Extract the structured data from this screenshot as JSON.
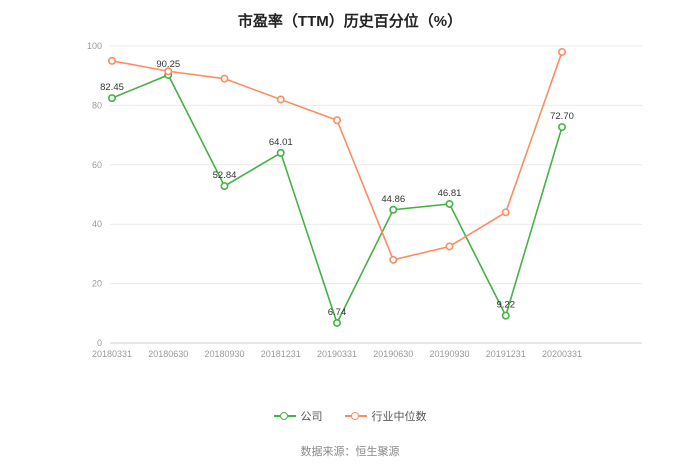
{
  "footer": {
    "source_text": "数据来源：恒生聚源"
  },
  "chart_data": {
    "type": "line",
    "title": "市盈率（TTM）历史百分位（%）",
    "categories": [
      "20180331",
      "20180630",
      "20180930",
      "20181231",
      "20190331",
      "20190630",
      "20190930",
      "20191231",
      "20200331"
    ],
    "series": [
      {
        "id": "company",
        "name": "公司",
        "color": "#44b244",
        "show_labels": true,
        "values": [
          82.45,
          90.25,
          52.84,
          64.01,
          6.74,
          44.86,
          46.81,
          9.22,
          72.7
        ]
      },
      {
        "id": "industry-median",
        "name": "行业中位数",
        "color": "#fa8e61",
        "show_labels": false,
        "values": [
          95,
          91.5,
          89,
          82,
          75,
          28,
          32.5,
          44,
          98
        ]
      }
    ],
    "xlabel": "",
    "ylabel": "",
    "ylim": [
      0,
      100
    ],
    "yticks": [
      0,
      20,
      40,
      60,
      80,
      100
    ],
    "grid": true,
    "legend_position": "bottom",
    "marker": "open-circle",
    "colors": {
      "grid": "#e9e9e9",
      "axis": "#cccccc",
      "tick_text": "#999999",
      "label_text": "#333333"
    }
  }
}
